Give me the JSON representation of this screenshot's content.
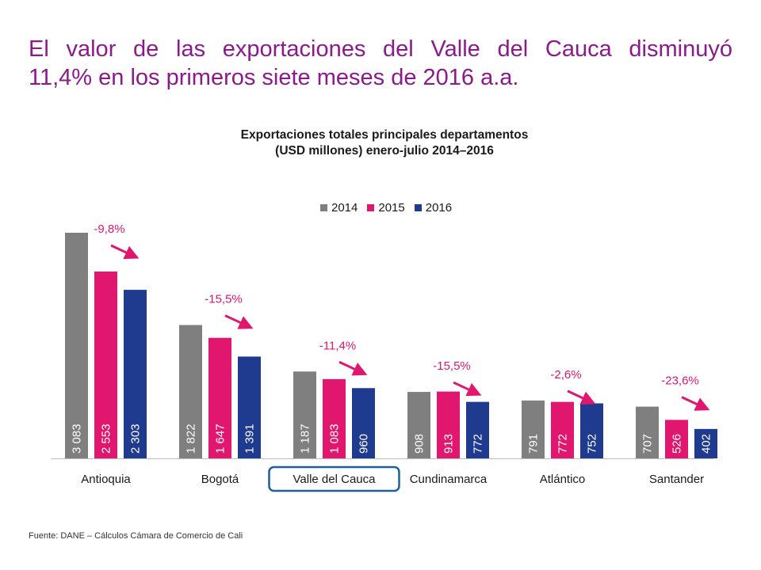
{
  "headline": {
    "line1": "El valor de las exportaciones del Valle del Cauca disminuyó",
    "line2": "11,4% en los primeros siete meses de 2016 a.a."
  },
  "footnote": "Fuente: DANE – Cálculos Cámara de Comercio de Cali",
  "colors": {
    "headline": "#8b1a8b",
    "accent": "#e0166f",
    "highlight_box": "#1f5f9a"
  },
  "chart_data": {
    "type": "bar",
    "title": "Exportaciones totales principales departamentos",
    "subtitle": "(USD millones) enero-julio 2014–2016",
    "categories": [
      "Antioquia",
      "Bogotá",
      "Valle del Cauca",
      "Cundinamarca",
      "Atlántico",
      "Santander"
    ],
    "series": [
      {
        "name": "2014",
        "color": "#7f7f7f",
        "values": [
          3083,
          1822,
          1187,
          908,
          791,
          707
        ],
        "labels": [
          "3 083",
          "1 822",
          "1 187",
          "908",
          "791",
          "707"
        ]
      },
      {
        "name": "2015",
        "color": "#e0166f",
        "values": [
          2553,
          1647,
          1083,
          913,
          772,
          526
        ],
        "labels": [
          "2 553",
          "1 647",
          "1 083",
          "913",
          "772",
          "526"
        ]
      },
      {
        "name": "2016",
        "color": "#1f3b8f",
        "values": [
          2303,
          1391,
          960,
          772,
          752,
          402
        ],
        "labels": [
          "2 303",
          "1 391",
          "960",
          "772",
          "752",
          "402"
        ]
      }
    ],
    "annotations": [
      "-9,8%",
      "-15,5%",
      "-11,4%",
      "-15,5%",
      "-2,6%",
      "-23,6%"
    ],
    "highlighted_category": "Valle del Cauca",
    "ylim": [
      0,
      3083
    ],
    "legend": "top",
    "grid": false
  }
}
